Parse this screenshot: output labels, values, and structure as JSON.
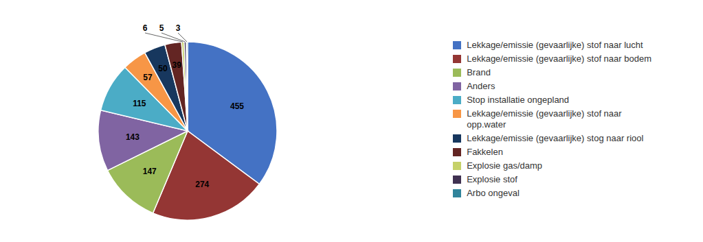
{
  "chart_data": {
    "type": "pie",
    "categories": [
      "Lekkage/emissie (gevaarlijke) stof naar lucht",
      "Lekkage/emissie (gevaarlijke) stof naar bodem",
      "Brand",
      "Anders",
      "Stop installatie ongepland",
      "Lekkage/emissie (gevaarlijke) stof naar\nopp.water",
      "Lekkage/emissie (gevaarlijke) stog naar riool",
      "Fakkelen",
      "Explosie gas/damp",
      "Explosie stof",
      "Arbo ongeval"
    ],
    "values": [
      455,
      274,
      147,
      143,
      115,
      57,
      50,
      39,
      6,
      5,
      3
    ],
    "colors": [
      "#4472C4",
      "#943634",
      "#9BBB59",
      "#8064A2",
      "#4BACC6",
      "#F79646",
      "#17375E",
      "#632523",
      "#C6D169",
      "#403151",
      "#31849B"
    ],
    "data_labels": true,
    "legend": "right"
  }
}
